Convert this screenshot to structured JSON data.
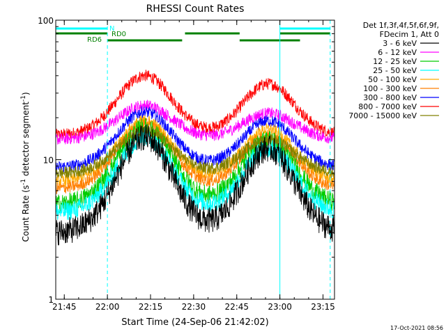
{
  "chart_data": {
    "type": "line",
    "title": "RHESSI Count Rates",
    "xlabel": "Start Time (24-Sep-06 21:42:02)",
    "ylabel_main": "Count Rate (s",
    "ylabel_sup1": "-1",
    "ylabel_mid": " detector segment",
    "ylabel_sup2": "-1",
    "ylabel_end": ")",
    "y_scale": "log",
    "ylim": [
      1,
      100
    ],
    "xlim": [
      "21:42:02",
      "23:19:00"
    ],
    "x_ticks": [
      "21:45",
      "22:00",
      "22:15",
      "22:30",
      "22:45",
      "23:00",
      "23:15"
    ],
    "y_ticks": [
      "1",
      "10",
      "100"
    ],
    "grid": false,
    "legend_position": "right",
    "legend_header": [
      "Det 1f,3f,4f,5f,6f,9f,",
      "FDecim 1, Att 0"
    ],
    "footer_date": "17-Oct-2021 08:56",
    "series": [
      {
        "name": "3 - 6 keV",
        "color": "#000000",
        "base": 3.0,
        "peak1": 14.5,
        "peak2": 12.0
      },
      {
        "name": "6 - 12 keV",
        "color": "#ff00ff",
        "base": 14.0,
        "peak1": 24.5,
        "peak2": 21.5
      },
      {
        "name": "12 - 25 keV",
        "color": "#00cc00",
        "base": 4.8,
        "peak1": 17.0,
        "peak2": 14.0
      },
      {
        "name": "25 - 50 keV",
        "color": "#00ffff",
        "base": 4.2,
        "peak1": 14.5,
        "peak2": 12.0
      },
      {
        "name": "50 - 100 keV",
        "color": "#ffaa00",
        "base": 7.0,
        "peak1": 19.0,
        "peak2": 16.5
      },
      {
        "name": "100 - 300 keV",
        "color": "#ff7f00",
        "base": 6.2,
        "peak1": 18.0,
        "peak2": 15.0
      },
      {
        "name": "300 - 800 keV",
        "color": "#0000ff",
        "base": 8.8,
        "peak1": 22.0,
        "peak2": 19.0
      },
      {
        "name": "800 - 7000 keV",
        "color": "#ff0000",
        "base": 15.0,
        "peak1": 40.0,
        "peak2": 35.0
      },
      {
        "name": "7000 - 15000 keV",
        "color": "#808000",
        "base": 8.0,
        "peak1": 16.0,
        "peak2": 14.0
      }
    ],
    "vertical_markers": [
      {
        "time": "21:42:02",
        "color": "#00ffff",
        "style": "solid"
      },
      {
        "time": "22:00:00",
        "color": "#00ffff",
        "style": "dashed"
      },
      {
        "time": "23:00:00",
        "color": "#00ffff",
        "style": "solid"
      },
      {
        "time": "23:17:30",
        "color": "#00ffff",
        "style": "dashed"
      }
    ],
    "flag_bars": [
      {
        "label": "N",
        "color": "#00ffff",
        "level": 1,
        "segments": [
          [
            "21:42:02",
            "22:00:00"
          ],
          [
            "23:00:00",
            "23:17:30"
          ]
        ]
      },
      {
        "label": "RD0",
        "color": "#008000",
        "level": 2,
        "segments": [
          [
            "21:42:02",
            "22:00:00"
          ],
          [
            "22:27:00",
            "22:46:00"
          ],
          [
            "23:00:00",
            "23:17:30"
          ]
        ]
      },
      {
        "label": "RD6",
        "color": "#008000",
        "level": 3,
        "segments": [
          [
            "22:00:00",
            "22:26:00"
          ],
          [
            "22:46:00",
            "23:07:00"
          ]
        ]
      }
    ]
  }
}
